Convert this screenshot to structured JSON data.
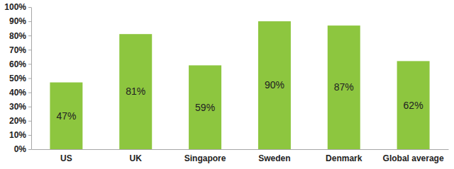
{
  "chart_data": {
    "type": "bar",
    "categories": [
      "US",
      "UK",
      "Singapore",
      "Sweden",
      "Denmark",
      "Global average"
    ],
    "values": [
      47,
      81,
      59,
      90,
      87,
      62
    ],
    "value_labels": [
      "47%",
      "81%",
      "59%",
      "90%",
      "87%",
      "62%"
    ],
    "color": "#8dc63f",
    "ylim": [
      0,
      100
    ],
    "yticks": [
      {
        "value": 0,
        "label": "0%"
      },
      {
        "value": 10,
        "label": "10%"
      },
      {
        "value": 20,
        "label": "20%"
      },
      {
        "value": 30,
        "label": "30%"
      },
      {
        "value": 40,
        "label": "40%"
      },
      {
        "value": 50,
        "label": "50%"
      },
      {
        "value": 60,
        "label": "60%"
      },
      {
        "value": 70,
        "label": "70%"
      },
      {
        "value": 80,
        "label": "80%"
      },
      {
        "value": 90,
        "label": "90%"
      },
      {
        "value": 100,
        "label": "100%"
      }
    ],
    "grid": false,
    "data_labels": true
  }
}
